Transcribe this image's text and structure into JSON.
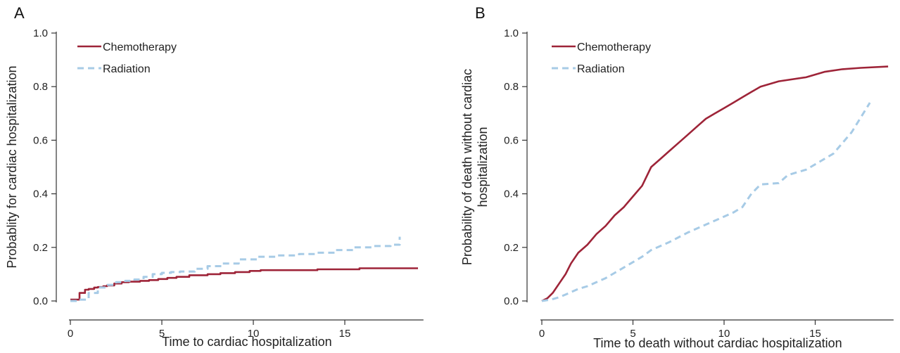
{
  "chart_data": [
    {
      "type": "line",
      "panel_label": "A",
      "xlabel": "Time to cardiac hospitalization",
      "ylabel": "Probablity for cardiac hospitalization",
      "xlim": [
        -0.8,
        19.5
      ],
      "ylim": [
        -0.03,
        1.03
      ],
      "xticks": [
        0,
        5,
        10,
        15
      ],
      "yticks": [
        0.0,
        0.2,
        0.4,
        0.6,
        0.8,
        1.0
      ],
      "ytick_labels": [
        "0.0",
        "0.2",
        "0.4",
        "0.6",
        "0.8",
        "1.0"
      ],
      "legend_position": "top-left",
      "grid": false,
      "series": [
        {
          "name": "Chemotherapy",
          "color": "#9e2438",
          "dash": "solid",
          "step": true,
          "x": [
            0.0,
            0.5,
            0.8,
            1.0,
            1.3,
            1.5,
            1.8,
            2.0,
            2.4,
            2.8,
            3.2,
            3.8,
            4.3,
            4.8,
            5.3,
            5.8,
            6.5,
            7.5,
            8.2,
            9.0,
            9.8,
            10.4,
            11.5,
            13.5,
            15.8,
            19.0
          ],
          "y": [
            0.005,
            0.03,
            0.042,
            0.045,
            0.05,
            0.052,
            0.055,
            0.058,
            0.065,
            0.07,
            0.072,
            0.075,
            0.078,
            0.082,
            0.086,
            0.09,
            0.096,
            0.1,
            0.104,
            0.108,
            0.112,
            0.115,
            0.115,
            0.118,
            0.122,
            0.122
          ]
        },
        {
          "name": "Radiation",
          "color": "#a7cbe6",
          "dash": "dashed",
          "step": true,
          "x": [
            0.0,
            0.5,
            1.0,
            1.5,
            2.0,
            2.5,
            3.0,
            3.5,
            4.0,
            4.5,
            5.0,
            5.5,
            6.0,
            6.8,
            7.5,
            8.3,
            9.2,
            10.2,
            11.3,
            12.5,
            13.5,
            14.5,
            15.5,
            16.5,
            17.5,
            18.0
          ],
          "y": [
            0.0,
            0.005,
            0.03,
            0.05,
            0.06,
            0.07,
            0.075,
            0.08,
            0.09,
            0.1,
            0.105,
            0.108,
            0.11,
            0.12,
            0.13,
            0.14,
            0.155,
            0.165,
            0.17,
            0.175,
            0.18,
            0.19,
            0.2,
            0.205,
            0.21,
            0.24
          ]
        }
      ]
    },
    {
      "type": "line",
      "panel_label": "B",
      "xlabel": "Time to death without cardiac hospitalization",
      "ylabel": "Probability of death without cardiac hospitalization",
      "ylabel_lines": [
        "Probability of death without cardiac",
        "hospitalization"
      ],
      "xlim": [
        -0.8,
        19.5
      ],
      "ylim": [
        -0.03,
        1.03
      ],
      "xticks": [
        0,
        5,
        10,
        15
      ],
      "yticks": [
        0.0,
        0.2,
        0.4,
        0.6,
        0.8,
        1.0
      ],
      "ytick_labels": [
        "0.0",
        "0.2",
        "0.4",
        "0.6",
        "0.8",
        "1.0"
      ],
      "legend_position": "top-left",
      "grid": false,
      "series": [
        {
          "name": "Chemotherapy",
          "color": "#9e2438",
          "dash": "solid",
          "step": false,
          "x": [
            0.0,
            0.3,
            0.6,
            1.0,
            1.3,
            1.6,
            2.0,
            2.5,
            3.0,
            3.5,
            4.0,
            4.5,
            5.0,
            5.5,
            6.0,
            6.5,
            7.0,
            7.5,
            8.0,
            8.5,
            9.0,
            9.5,
            10.0,
            10.5,
            11.0,
            11.5,
            12.0,
            13.0,
            14.5,
            15.5,
            16.5,
            17.5,
            19.0
          ],
          "y": [
            0.0,
            0.01,
            0.03,
            0.07,
            0.1,
            0.14,
            0.18,
            0.21,
            0.25,
            0.28,
            0.32,
            0.35,
            0.39,
            0.43,
            0.5,
            0.53,
            0.56,
            0.59,
            0.62,
            0.65,
            0.68,
            0.7,
            0.72,
            0.74,
            0.76,
            0.78,
            0.8,
            0.82,
            0.835,
            0.855,
            0.865,
            0.87,
            0.875
          ]
        },
        {
          "name": "Radiation",
          "color": "#a7cbe6",
          "dash": "dashed",
          "step": false,
          "x": [
            0.0,
            0.5,
            1.0,
            1.5,
            2.0,
            2.5,
            3.0,
            3.5,
            4.0,
            4.5,
            5.0,
            5.5,
            6.0,
            7.0,
            8.0,
            9.0,
            10.0,
            10.5,
            11.0,
            11.5,
            12.0,
            13.0,
            13.5,
            14.5,
            15.0,
            16.0,
            17.0,
            18.0
          ],
          "y": [
            0.0,
            0.005,
            0.015,
            0.03,
            0.045,
            0.055,
            0.07,
            0.085,
            0.105,
            0.125,
            0.145,
            0.165,
            0.19,
            0.22,
            0.255,
            0.285,
            0.315,
            0.33,
            0.35,
            0.4,
            0.435,
            0.44,
            0.47,
            0.49,
            0.51,
            0.55,
            0.63,
            0.74
          ]
        }
      ]
    }
  ]
}
